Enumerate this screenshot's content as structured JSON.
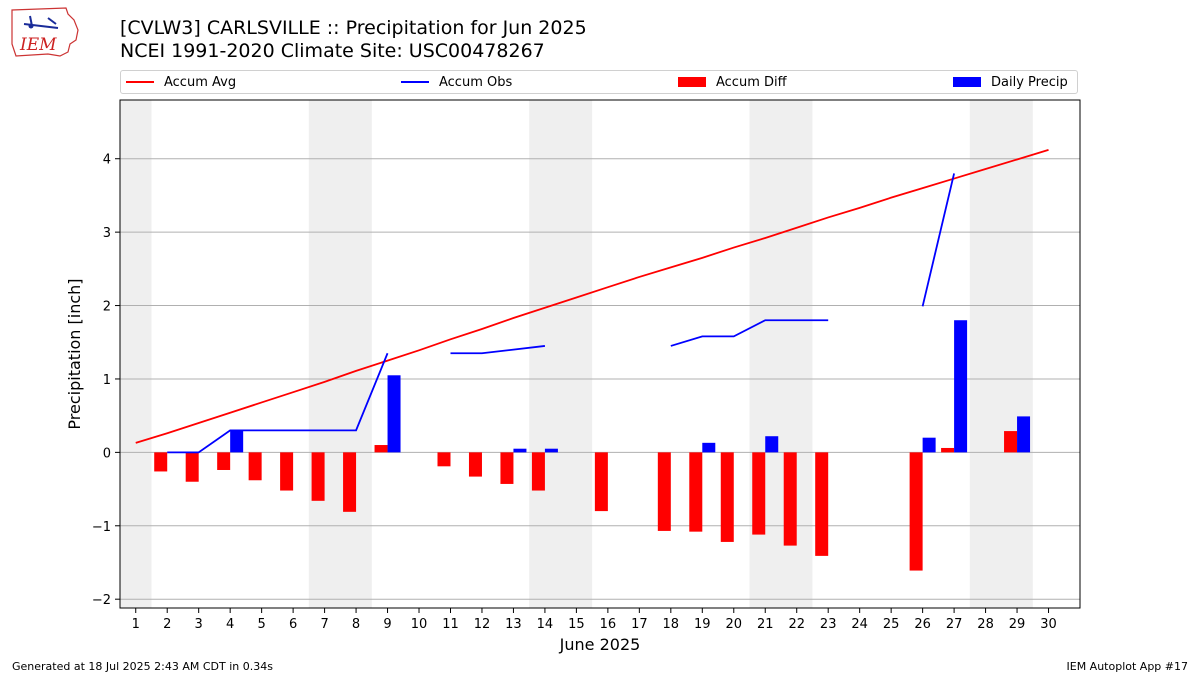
{
  "header": {
    "title": "[CVLW3] CARLSVILLE :: Precipitation for Jun 2025",
    "subtitle": "NCEI 1991-2020 Climate Site: USC00478267",
    "logo_text": "IEM"
  },
  "legend": [
    {
      "label": "Accum Avg",
      "kind": "line",
      "color": "#ff0000"
    },
    {
      "label": "Accum Obs",
      "kind": "line",
      "color": "#0000ff"
    },
    {
      "label": "Accum Diff",
      "kind": "bar",
      "color": "#ff0000"
    },
    {
      "label": "Daily Precip",
      "kind": "bar",
      "color": "#0000ff"
    }
  ],
  "footer": {
    "left": "Generated at 18 Jul 2025 2:43 AM CDT in 0.34s",
    "right": "IEM Autoplot App #17"
  },
  "chart_data": {
    "type": "bar",
    "xlabel": "June 2025",
    "ylabel": "Precipitation [inch]",
    "xlim": [
      0.5,
      31
    ],
    "ylim": [
      -2.12,
      4.8
    ],
    "x_ticks": [
      1,
      2,
      3,
      4,
      5,
      6,
      7,
      8,
      9,
      10,
      11,
      12,
      13,
      14,
      15,
      16,
      17,
      18,
      19,
      20,
      21,
      22,
      23,
      24,
      25,
      26,
      27,
      28,
      29,
      30
    ],
    "y_ticks": [
      -2,
      -1,
      0,
      1,
      2,
      3,
      4
    ],
    "y_grid": true,
    "weekend_shading": [
      [
        0.5,
        1.5
      ],
      [
        6.5,
        8.5
      ],
      [
        13.5,
        15.5
      ],
      [
        20.5,
        22.5
      ],
      [
        27.5,
        29.5
      ]
    ],
    "series": [
      {
        "name": "Accum Avg",
        "type": "line",
        "color": "#ff0000",
        "x": [
          1,
          2,
          3,
          4,
          5,
          6,
          7,
          8,
          9,
          10,
          11,
          12,
          13,
          14,
          15,
          16,
          17,
          18,
          19,
          20,
          21,
          22,
          23,
          24,
          25,
          26,
          27,
          28,
          29,
          30
        ],
        "values": [
          0.13,
          0.26,
          0.4,
          0.54,
          0.68,
          0.82,
          0.96,
          1.11,
          1.25,
          1.39,
          1.54,
          1.68,
          1.83,
          1.97,
          2.11,
          2.25,
          2.39,
          2.52,
          2.65,
          2.79,
          2.92,
          3.06,
          3.2,
          3.33,
          3.47,
          3.6,
          3.73,
          3.86,
          3.99,
          4.12
        ]
      },
      {
        "name": "Accum Obs",
        "type": "line",
        "color": "#0000ff",
        "x": [
          1,
          2,
          3,
          4,
          5,
          6,
          7,
          8,
          9,
          10,
          11,
          12,
          13,
          14,
          15,
          16,
          17,
          18,
          19,
          20,
          21,
          22,
          23,
          24,
          25,
          26,
          27,
          28,
          29,
          30
        ],
        "values": [
          null,
          0.0,
          0.0,
          0.3,
          0.3,
          0.3,
          0.3,
          0.3,
          1.35,
          null,
          1.35,
          1.35,
          1.4,
          1.45,
          null,
          null,
          null,
          1.45,
          1.58,
          1.58,
          1.8,
          1.8,
          1.8,
          null,
          null,
          1.99,
          3.8,
          null,
          null,
          null
        ]
      },
      {
        "name": "Accum Diff",
        "type": "bar",
        "color": "#ff0000",
        "x": [
          2,
          3,
          4,
          5,
          6,
          7,
          8,
          9,
          11,
          12,
          13,
          14,
          16,
          18,
          19,
          20,
          21,
          22,
          23,
          26,
          27,
          29
        ],
        "values": [
          -0.26,
          -0.4,
          -0.24,
          -0.38,
          -0.52,
          -0.66,
          -0.81,
          0.1,
          -0.19,
          -0.33,
          -0.43,
          -0.52,
          -0.8,
          -1.07,
          -1.08,
          -1.22,
          -1.12,
          -1.27,
          -1.41,
          -1.61,
          0.06,
          0.29
        ]
      },
      {
        "name": "Daily Precip",
        "type": "bar",
        "color": "#0000ff",
        "x": [
          4,
          9,
          13,
          14,
          19,
          21,
          26,
          27,
          29
        ],
        "values": [
          0.3,
          1.05,
          0.05,
          0.05,
          0.13,
          0.22,
          0.2,
          1.8,
          0.49
        ]
      }
    ]
  }
}
